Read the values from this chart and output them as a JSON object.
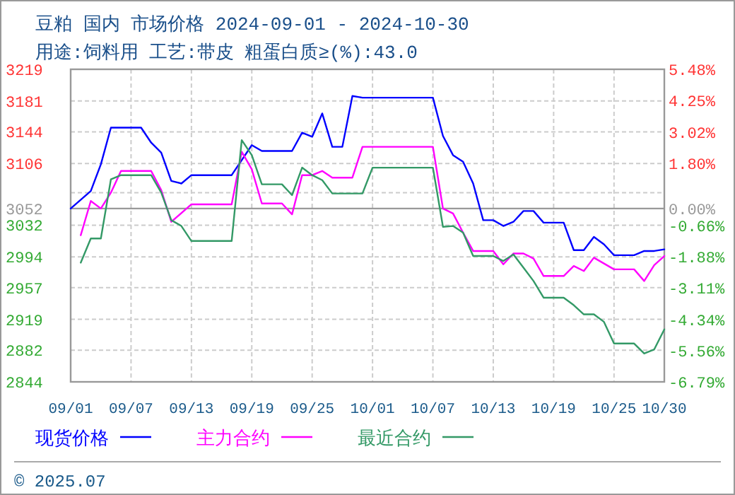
{
  "chart_data": {
    "type": "line",
    "title": "豆粕 国内 市场价格 2024-09-01 - 2024-10-30",
    "subtitle": "用途:饲料用 工艺:带皮 粗蛋白质≥(%):43.0",
    "annotations": [
      "© 2025.07"
    ],
    "xlim": [
      "--09-01",
      "--10-30"
    ],
    "xticks": [
      {
        "value": "--09-01",
        "label": "09/01"
      },
      {
        "value": "--09-07",
        "label": "09/07"
      },
      {
        "value": "--09-13",
        "label": "09/13"
      },
      {
        "value": "--09-19",
        "label": "09/19"
      },
      {
        "value": "--09-25",
        "label": "09/25"
      },
      {
        "value": "--10-01",
        "label": "10/01"
      },
      {
        "value": "--10-07",
        "label": "10/07"
      },
      {
        "value": "--10-13",
        "label": "10/13"
      },
      {
        "value": "--10-19",
        "label": "10/19"
      },
      {
        "value": "--10-25",
        "label": "10/25"
      },
      {
        "value": "--10-30",
        "label": "10/30"
      }
    ],
    "ylim": [
      2844,
      3219
    ],
    "yticks": [
      3219,
      3181,
      3144,
      3106,
      {
        "value": 3071,
        "label": null
      },
      3052,
      3032,
      2994,
      2957,
      2919,
      2882,
      2844
    ],
    "y2lim": [
      -6.79,
      5.48
    ],
    "y2ticks": [
      {
        "value": 5.48,
        "label": "5.48%"
      },
      {
        "value": 4.25,
        "label": "4.25%"
      },
      {
        "value": 3.02,
        "label": "3.02%"
      },
      {
        "value": 1.8,
        "label": "1.80%"
      },
      {
        "value": 0,
        "label": "0.00%"
      },
      {
        "value": -0.66,
        "label": "-0.66%"
      },
      {
        "value": -1.88,
        "label": "-1.88%"
      },
      {
        "value": -3.11,
        "label": "-3.11%"
      },
      {
        "value": -4.34,
        "label": "-4.34%"
      },
      {
        "value": -5.56,
        "label": "-5.56%"
      },
      {
        "value": -6.79,
        "label": "-6.79%"
      }
    ],
    "ref_lines": [
      {
        "axis": "y",
        "value": 3052,
        "color": "#999999"
      }
    ],
    "grid": true,
    "legend": "bottom",
    "line_style": "solid",
    "series": [
      {
        "name": "现货价格",
        "color": "#0000ff",
        "x": [
          "--09-01",
          "--09-03",
          "--09-04",
          "--09-05",
          "--09-08",
          "--09-09",
          "--09-10",
          "--09-11",
          "--09-12",
          "--09-13",
          "--09-17",
          "--09-19",
          "--09-20",
          "--09-23",
          "--09-24",
          "--09-25",
          "--09-26",
          "--09-27",
          "--09-28",
          "--09-29",
          "--09-30",
          "--10-07",
          "--10-08",
          "--10-09",
          "--10-10",
          "--10-11",
          "--10-12",
          "--10-13",
          "--10-14",
          "--10-15",
          "--10-16",
          "--10-17",
          "--10-18",
          "--10-20",
          "--10-21",
          "--10-22",
          "--10-23",
          "--10-24",
          "--10-25",
          "--10-27",
          "--10-28",
          "--10-29",
          "--10-30"
        ],
        "values": [
          3052,
          3073,
          3105,
          3149,
          3149,
          3131,
          3119,
          3085,
          3082,
          3092,
          3092,
          3128,
          3121,
          3121,
          3143,
          3138,
          3166,
          3126,
          3126,
          3187,
          3185,
          3185,
          3139,
          3116,
          3108,
          3082,
          3038,
          3038,
          3031,
          3036,
          3049,
          3049,
          3035,
          3035,
          3002,
          3002,
          3018,
          3009,
          2996,
          2996,
          3001,
          3001,
          3003
        ]
      },
      {
        "name": "主力合约",
        "color": "#ff00ff",
        "x": [
          "--09-02",
          "--09-03",
          "--09-04",
          "--09-05",
          "--09-06",
          "--09-09",
          "--09-10",
          "--09-11",
          "--09-13",
          "--09-17",
          "--09-18",
          "--09-19",
          "--09-20",
          "--09-22",
          "--09-23",
          "--09-24",
          "--09-25",
          "--09-26",
          "--09-27",
          "--09-29",
          "--09-30",
          "--10-07",
          "--10-08",
          "--10-09",
          "--10-10",
          "--10-11",
          "--10-13",
          "--10-14",
          "--10-15",
          "--10-16",
          "--10-17",
          "--10-18",
          "--10-20",
          "--10-21",
          "--10-22",
          "--10-23",
          "--10-25",
          "--10-27",
          "--10-28",
          "--10-29",
          "--10-30"
        ],
        "values": [
          3020,
          3061,
          3052,
          3071,
          3097,
          3097,
          3074,
          3036,
          3057,
          3057,
          3120,
          3099,
          3058,
          3058,
          3045,
          3092,
          3092,
          3097,
          3089,
          3089,
          3126,
          3126,
          3052,
          3046,
          3023,
          3001,
          3001,
          2985,
          2998,
          2998,
          2992,
          2971,
          2971,
          2983,
          2977,
          2993,
          2979,
          2979,
          2965,
          2984,
          2995
        ]
      },
      {
        "name": "最近合约",
        "color": "#339966",
        "x": [
          "--09-02",
          "--09-03",
          "--09-04",
          "--09-05",
          "--09-06",
          "--09-09",
          "--09-10",
          "--09-11",
          "--09-12",
          "--09-13",
          "--09-17",
          "--09-18",
          "--09-19",
          "--09-20",
          "--09-22",
          "--09-23",
          "--09-24",
          "--09-25",
          "--09-26",
          "--09-27",
          "--09-30",
          "--10-01",
          "--10-07",
          "--10-08",
          "--10-09",
          "--10-10",
          "--10-11",
          "--10-13",
          "--10-14",
          "--10-15",
          "--10-16",
          "--10-17",
          "--10-18",
          "--10-20",
          "--10-21",
          "--10-22",
          "--10-23",
          "--10-24",
          "--10-25",
          "--10-27",
          "--10-28",
          "--10-29",
          "--10-30"
        ],
        "values": [
          2987,
          3016,
          3016,
          3087,
          3092,
          3092,
          3071,
          3038,
          3031,
          3013,
          3013,
          3134,
          3116,
          3081,
          3081,
          3068,
          3101,
          3092,
          3086,
          3070,
          3070,
          3101,
          3101,
          3030,
          3031,
          3023,
          2995,
          2995,
          2989,
          2997,
          2981,
          2965,
          2945,
          2945,
          2936,
          2925,
          2925,
          2916,
          2890,
          2890,
          2878,
          2883,
          2907
        ]
      }
    ]
  }
}
